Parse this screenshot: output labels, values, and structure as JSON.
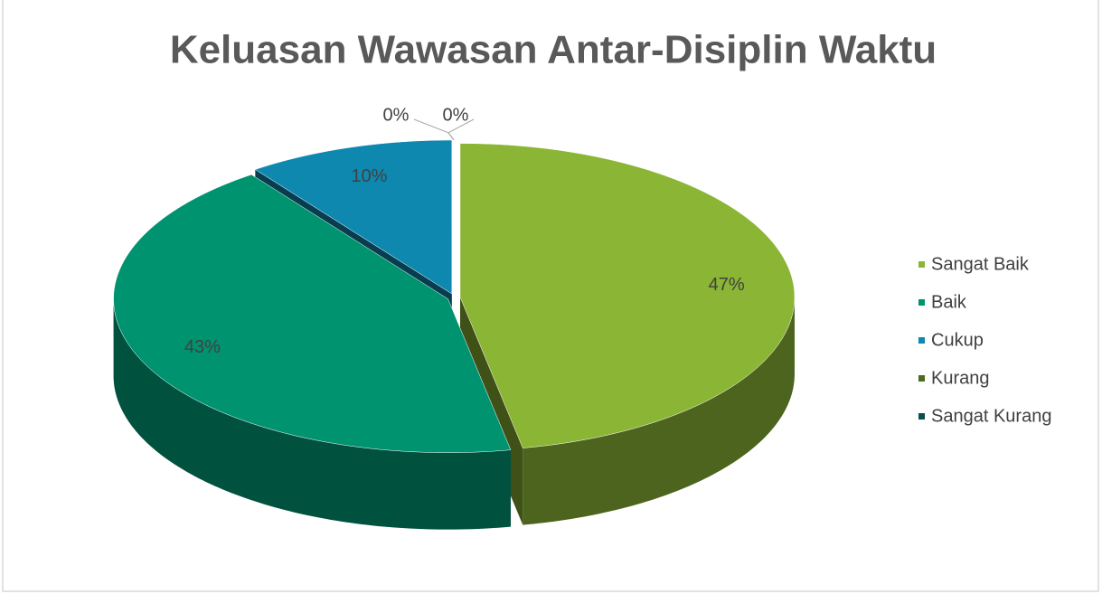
{
  "chart_data": {
    "type": "pie",
    "title": "Keluasan Wawasan Antar-Disiplin Waktu",
    "categories": [
      "Sangat Baik",
      "Baik",
      "Cukup",
      "Kurang",
      "Sangat Kurang"
    ],
    "values": [
      47,
      43,
      10,
      0,
      0
    ],
    "value_labels": [
      "47%",
      "43%",
      "10%",
      "0%",
      "0%"
    ],
    "colors": [
      "#8bb534",
      "#009370",
      "#0f88b0",
      "#4b6b1f",
      "#0b4e4e"
    ],
    "legend": "right"
  }
}
